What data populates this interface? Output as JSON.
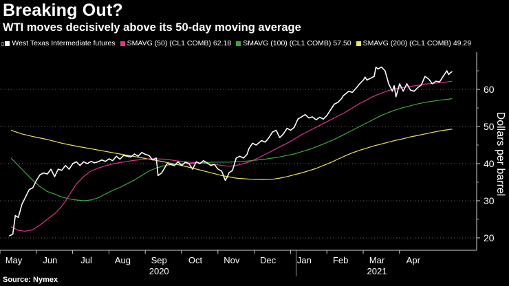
{
  "title": "Breaking Out?",
  "subtitle": "WTI moves decisively above its 50-day moving average",
  "source": "Source: Nymex",
  "legend": {
    "marker": "▯",
    "items": [
      {
        "label": "West Texas Intermediate futures",
        "value": "",
        "color": "#ffffff"
      },
      {
        "label": "SMAVG (50)  (CL1 COMB)",
        "value": "62.18",
        "color": "#e0338f"
      },
      {
        "label": "SMAVG (100)  (CL1 COMB)",
        "value": "57.50",
        "color": "#3ca83c"
      },
      {
        "label": "SMAVG (200)  (CL1 COMB)",
        "value": "49.29",
        "color": "#f0e060"
      }
    ]
  },
  "chart_data": {
    "type": "line",
    "title": "Breaking Out?",
    "subtitle": "WTI moves decisively above its 50-day moving average",
    "ylabel": "Dollars per barrel",
    "xlabel": "",
    "ylim": [
      17,
      67
    ],
    "yticks": [
      20,
      30,
      40,
      50,
      60
    ],
    "x_range": [
      0,
      12.35
    ],
    "month_ticks": [
      {
        "label": "May",
        "x": 0
      },
      {
        "label": "Jun",
        "x": 1
      },
      {
        "label": "Jul",
        "x": 2
      },
      {
        "label": "Aug",
        "x": 3
      },
      {
        "label": "Sep",
        "x": 4
      },
      {
        "label": "Oct",
        "x": 5
      },
      {
        "label": "Nov",
        "x": 6
      },
      {
        "label": "Dec",
        "x": 7
      },
      {
        "label": "Jan",
        "x": 8
      },
      {
        "label": "Feb",
        "x": 9
      },
      {
        "label": "Mar",
        "x": 10
      },
      {
        "label": "Apr",
        "x": 11
      }
    ],
    "year_labels": [
      {
        "label": "2020",
        "x": 4
      },
      {
        "label": "2021",
        "x": 10
      }
    ],
    "grid": true,
    "series": [
      {
        "name": "West Texas Intermediate futures",
        "color": "#ffffff",
        "points": [
          [
            -0.05,
            20.5
          ],
          [
            0.05,
            21
          ],
          [
            0.12,
            26
          ],
          [
            0.2,
            25.5
          ],
          [
            0.3,
            29
          ],
          [
            0.4,
            31
          ],
          [
            0.5,
            33
          ],
          [
            0.6,
            33.5
          ],
          [
            0.7,
            35.5
          ],
          [
            0.8,
            37
          ],
          [
            0.9,
            37.5
          ],
          [
            1.0,
            37.2
          ],
          [
            1.1,
            38.5
          ],
          [
            1.2,
            36.5
          ],
          [
            1.3,
            38.5
          ],
          [
            1.4,
            38.2
          ],
          [
            1.5,
            39.5
          ],
          [
            1.6,
            38.5
          ],
          [
            1.7,
            40
          ],
          [
            1.8,
            40.5
          ],
          [
            1.9,
            39.5
          ],
          [
            2.0,
            40.5
          ],
          [
            2.1,
            40
          ],
          [
            2.2,
            40.6
          ],
          [
            2.3,
            40.2
          ],
          [
            2.4,
            40.5
          ],
          [
            2.5,
            41
          ],
          [
            2.6,
            40.6
          ],
          [
            2.7,
            41.3
          ],
          [
            2.8,
            40.8
          ],
          [
            2.9,
            42
          ],
          [
            3.0,
            41.2
          ],
          [
            3.1,
            42.2
          ],
          [
            3.2,
            42
          ],
          [
            3.3,
            41.8
          ],
          [
            3.4,
            42.6
          ],
          [
            3.5,
            42
          ],
          [
            3.6,
            43
          ],
          [
            3.7,
            42.5
          ],
          [
            3.8,
            42.2
          ],
          [
            3.9,
            41
          ],
          [
            4.0,
            41.5
          ],
          [
            4.05,
            36.8
          ],
          [
            4.15,
            37.5
          ],
          [
            4.3,
            40
          ],
          [
            4.5,
            39.5
          ],
          [
            4.6,
            40.5
          ],
          [
            4.7,
            39.5
          ],
          [
            4.8,
            40.4
          ],
          [
            4.9,
            40
          ],
          [
            5.0,
            38.5
          ],
          [
            5.1,
            40.5
          ],
          [
            5.2,
            40
          ],
          [
            5.3,
            40.8
          ],
          [
            5.4,
            40.2
          ],
          [
            5.5,
            39.5
          ],
          [
            5.6,
            39.8
          ],
          [
            5.7,
            38.5
          ],
          [
            5.8,
            38
          ],
          [
            5.9,
            35.5
          ],
          [
            5.95,
            36.3
          ],
          [
            6.0,
            37.5
          ],
          [
            6.1,
            38.2
          ],
          [
            6.2,
            41.5
          ],
          [
            6.3,
            42
          ],
          [
            6.4,
            41.5
          ],
          [
            6.5,
            42.5
          ],
          [
            6.55,
            44
          ],
          [
            6.65,
            45.5
          ],
          [
            6.75,
            45
          ],
          [
            6.9,
            46.2
          ],
          [
            7.0,
            45.8
          ],
          [
            7.1,
            47
          ],
          [
            7.2,
            48.5
          ],
          [
            7.3,
            49
          ],
          [
            7.4,
            47
          ],
          [
            7.5,
            48
          ],
          [
            7.6,
            49.5
          ],
          [
            7.7,
            49
          ],
          [
            7.8,
            49.8
          ],
          [
            7.9,
            52
          ],
          [
            8.0,
            52.6
          ],
          [
            8.1,
            53.2
          ],
          [
            8.2,
            52.3
          ],
          [
            8.3,
            52.6
          ],
          [
            8.4,
            51.8
          ],
          [
            8.5,
            52.5
          ],
          [
            8.6,
            52
          ],
          [
            8.7,
            53
          ],
          [
            8.8,
            54.5
          ],
          [
            8.9,
            56
          ],
          [
            9.0,
            56.5
          ],
          [
            9.1,
            57.5
          ],
          [
            9.15,
            58.3
          ],
          [
            9.3,
            59.5
          ],
          [
            9.4,
            59.2
          ],
          [
            9.5,
            60.3
          ],
          [
            9.6,
            61.5
          ],
          [
            9.7,
            62.5
          ],
          [
            9.75,
            63.3
          ],
          [
            9.8,
            62.5
          ],
          [
            9.9,
            63
          ],
          [
            10.0,
            63.5
          ],
          [
            10.05,
            66
          ],
          [
            10.1,
            65.5
          ],
          [
            10.2,
            66
          ],
          [
            10.3,
            65
          ],
          [
            10.4,
            61.5
          ],
          [
            10.5,
            59.5
          ],
          [
            10.55,
            61
          ],
          [
            10.6,
            58
          ],
          [
            10.7,
            61.5
          ],
          [
            10.8,
            59.5
          ],
          [
            10.9,
            61.5
          ],
          [
            11.0,
            59.8
          ],
          [
            11.1,
            59.5
          ],
          [
            11.2,
            60.5
          ],
          [
            11.3,
            61.2
          ],
          [
            11.4,
            63.5
          ],
          [
            11.5,
            62.8
          ],
          [
            11.6,
            61.5
          ],
          [
            11.7,
            62.2
          ],
          [
            11.8,
            62
          ],
          [
            11.9,
            63.5
          ],
          [
            12.0,
            65
          ],
          [
            12.05,
            64
          ],
          [
            12.1,
            64.5
          ],
          [
            12.15,
            64.8
          ]
        ]
      },
      {
        "name": "SMAVG (50)  (CL1 COMB)",
        "color": "#e0338f",
        "points": [
          [
            0.0,
            23
          ],
          [
            0.2,
            22
          ],
          [
            0.4,
            21.8
          ],
          [
            0.6,
            22.2
          ],
          [
            0.8,
            23.5
          ],
          [
            1.0,
            25
          ],
          [
            1.2,
            26.5
          ],
          [
            1.4,
            28.5
          ],
          [
            1.6,
            31.5
          ],
          [
            1.8,
            34.5
          ],
          [
            2.0,
            36.5
          ],
          [
            2.2,
            38
          ],
          [
            2.4,
            38.8
          ],
          [
            2.6,
            39.4
          ],
          [
            2.8,
            39.9
          ],
          [
            3.0,
            40.3
          ],
          [
            3.2,
            40.6
          ],
          [
            3.4,
            40.9
          ],
          [
            3.6,
            41.1
          ],
          [
            3.8,
            41.3
          ],
          [
            4.0,
            41.3
          ],
          [
            4.2,
            41.2
          ],
          [
            4.4,
            41
          ],
          [
            4.6,
            40.7
          ],
          [
            4.8,
            40.5
          ],
          [
            5.0,
            40.3
          ],
          [
            5.2,
            40.2
          ],
          [
            5.4,
            40
          ],
          [
            5.6,
            39.8
          ],
          [
            5.8,
            39.5
          ],
          [
            6.0,
            39.3
          ],
          [
            6.2,
            39.5
          ],
          [
            6.4,
            40
          ],
          [
            6.6,
            40.6
          ],
          [
            6.8,
            41.5
          ],
          [
            7.0,
            42.5
          ],
          [
            7.2,
            43.5
          ],
          [
            7.4,
            44.5
          ],
          [
            7.6,
            45.5
          ],
          [
            7.8,
            46.6
          ],
          [
            8.0,
            47.8
          ],
          [
            8.2,
            48.8
          ],
          [
            8.4,
            49.8
          ],
          [
            8.6,
            50.8
          ],
          [
            8.8,
            51.8
          ],
          [
            9.0,
            52.8
          ],
          [
            9.2,
            53.8
          ],
          [
            9.4,
            55
          ],
          [
            9.6,
            56.2
          ],
          [
            9.8,
            57.2
          ],
          [
            10.0,
            58.2
          ],
          [
            10.2,
            59
          ],
          [
            10.4,
            59.7
          ],
          [
            10.6,
            60.2
          ],
          [
            10.8,
            60.5
          ],
          [
            11.0,
            60.8
          ],
          [
            11.2,
            61.1
          ],
          [
            11.4,
            61.4
          ],
          [
            11.6,
            61.6
          ],
          [
            11.8,
            61.8
          ],
          [
            12.0,
            62
          ],
          [
            12.15,
            62.18
          ]
        ]
      },
      {
        "name": "SMAVG (100)  (CL1 COMB)",
        "color": "#3ca83c",
        "points": [
          [
            0.0,
            41.5
          ],
          [
            0.2,
            39.5
          ],
          [
            0.4,
            37.5
          ],
          [
            0.6,
            35.5
          ],
          [
            0.8,
            33.8
          ],
          [
            1.0,
            32.5
          ],
          [
            1.2,
            31.8
          ],
          [
            1.4,
            31
          ],
          [
            1.6,
            30.5
          ],
          [
            1.8,
            30.2
          ],
          [
            2.0,
            30
          ],
          [
            2.2,
            30.2
          ],
          [
            2.4,
            30.8
          ],
          [
            2.6,
            31.8
          ],
          [
            2.8,
            32.8
          ],
          [
            3.0,
            33.6
          ],
          [
            3.2,
            34.6
          ],
          [
            3.4,
            35.6
          ],
          [
            3.6,
            36.8
          ],
          [
            3.8,
            38
          ],
          [
            4.0,
            38.8
          ],
          [
            4.2,
            39.4
          ],
          [
            4.4,
            39.7
          ],
          [
            4.6,
            39.9
          ],
          [
            4.8,
            40
          ],
          [
            5.0,
            40.1
          ],
          [
            5.2,
            40.2
          ],
          [
            5.4,
            40.3
          ],
          [
            5.6,
            40.4
          ],
          [
            5.8,
            40.4
          ],
          [
            6.0,
            40.4
          ],
          [
            6.2,
            40.5
          ],
          [
            6.4,
            40.6
          ],
          [
            6.6,
            40.8
          ],
          [
            6.8,
            41
          ],
          [
            7.0,
            41.2
          ],
          [
            7.2,
            41.5
          ],
          [
            7.4,
            41.8
          ],
          [
            7.6,
            42.2
          ],
          [
            7.8,
            42.6
          ],
          [
            8.0,
            43.2
          ],
          [
            8.2,
            43.8
          ],
          [
            8.4,
            44.5
          ],
          [
            8.6,
            45.3
          ],
          [
            8.8,
            46.1
          ],
          [
            9.0,
            47
          ],
          [
            9.2,
            48
          ],
          [
            9.4,
            49
          ],
          [
            9.6,
            50
          ],
          [
            9.8,
            51
          ],
          [
            10.0,
            52
          ],
          [
            10.2,
            53
          ],
          [
            10.4,
            53.8
          ],
          [
            10.6,
            54.5
          ],
          [
            10.8,
            55.1
          ],
          [
            11.0,
            55.6
          ],
          [
            11.2,
            56.1
          ],
          [
            11.4,
            56.5
          ],
          [
            11.6,
            56.8
          ],
          [
            11.8,
            57.1
          ],
          [
            12.0,
            57.3
          ],
          [
            12.15,
            57.5
          ]
        ]
      },
      {
        "name": "SMAVG (200)  (CL1 COMB)",
        "color": "#f0e060",
        "points": [
          [
            0.0,
            49
          ],
          [
            0.3,
            48
          ],
          [
            0.6,
            47.3
          ],
          [
            1.0,
            46.5
          ],
          [
            1.4,
            45.5
          ],
          [
            1.8,
            44.7
          ],
          [
            2.2,
            44
          ],
          [
            2.6,
            43.3
          ],
          [
            3.0,
            42.6
          ],
          [
            3.4,
            41.9
          ],
          [
            3.8,
            41.2
          ],
          [
            4.2,
            40.5
          ],
          [
            4.6,
            39.7
          ],
          [
            5.0,
            38.8
          ],
          [
            5.4,
            37.8
          ],
          [
            5.8,
            36.8
          ],
          [
            6.2,
            36.1
          ],
          [
            6.6,
            35.8
          ],
          [
            7.0,
            35.7
          ],
          [
            7.2,
            35.8
          ],
          [
            7.4,
            36.1
          ],
          [
            7.6,
            36.5
          ],
          [
            7.8,
            37
          ],
          [
            8.0,
            37.5
          ],
          [
            8.2,
            38.1
          ],
          [
            8.4,
            38.7
          ],
          [
            8.6,
            39.5
          ],
          [
            8.8,
            40.3
          ],
          [
            9.0,
            41.2
          ],
          [
            9.2,
            42.1
          ],
          [
            9.4,
            42.9
          ],
          [
            9.6,
            43.6
          ],
          [
            9.8,
            44.2
          ],
          [
            10.0,
            44.8
          ],
          [
            10.2,
            45.3
          ],
          [
            10.4,
            45.8
          ],
          [
            10.6,
            46.3
          ],
          [
            10.8,
            46.7
          ],
          [
            11.0,
            47.2
          ],
          [
            11.2,
            47.6
          ],
          [
            11.4,
            48
          ],
          [
            11.6,
            48.4
          ],
          [
            11.8,
            48.8
          ],
          [
            12.0,
            49.1
          ],
          [
            12.15,
            49.29
          ]
        ]
      }
    ]
  }
}
